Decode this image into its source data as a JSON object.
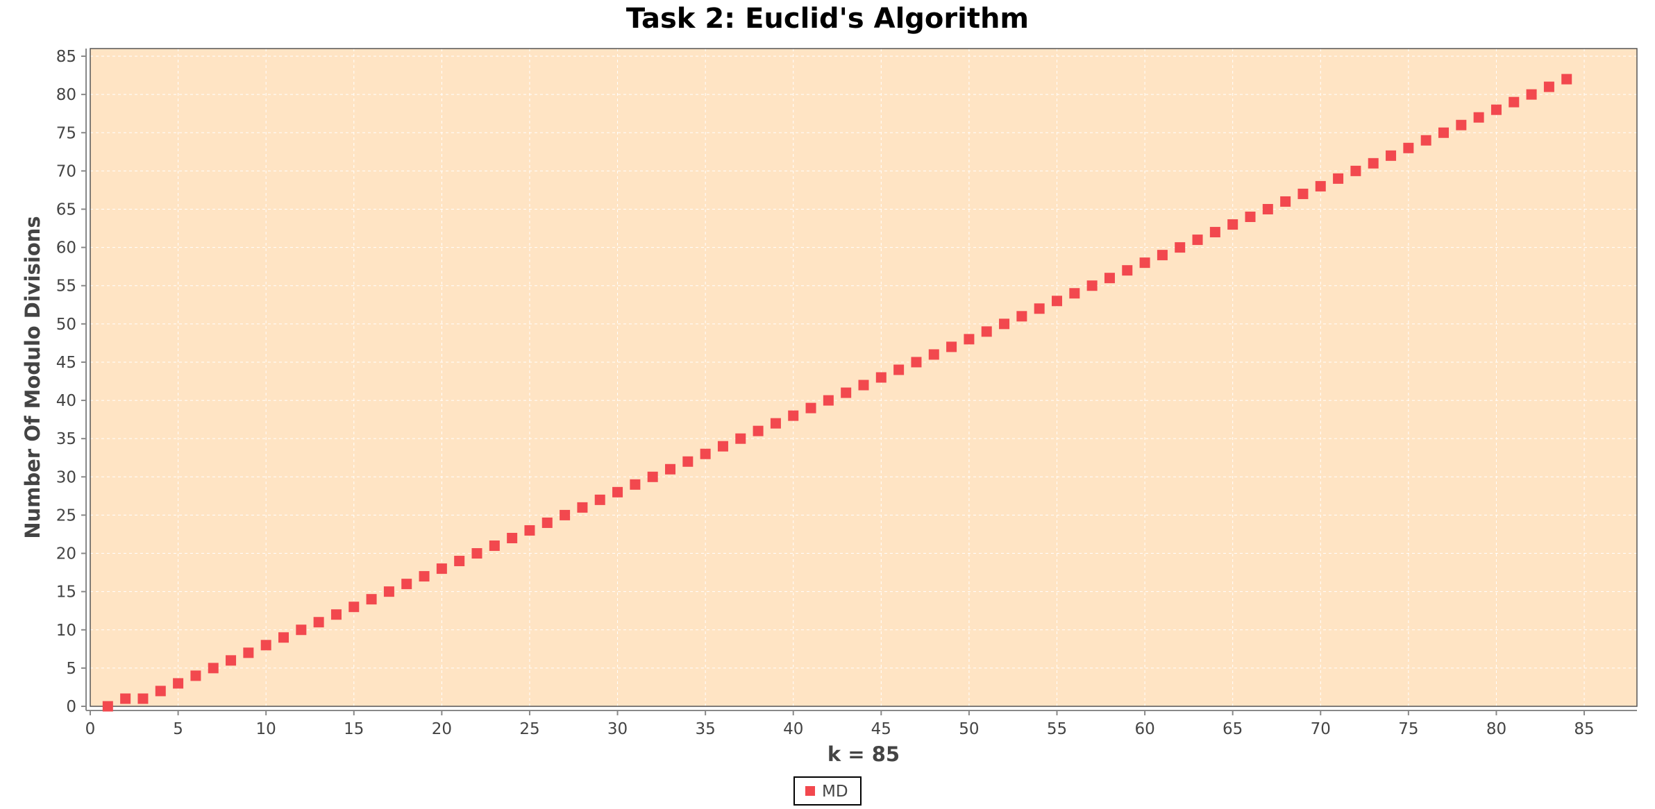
{
  "chart_data": {
    "type": "scatter",
    "title": "Task 2: Euclid's Algorithm",
    "xlabel": "k = 85",
    "ylabel": "Number Of Modulo Divisions",
    "xlim": [
      0,
      88
    ],
    "ylim": [
      0,
      86
    ],
    "xticks": [
      0,
      5,
      10,
      15,
      20,
      25,
      30,
      35,
      40,
      45,
      50,
      55,
      60,
      65,
      70,
      75,
      80,
      85
    ],
    "yticks": [
      0,
      5,
      10,
      15,
      20,
      25,
      30,
      35,
      40,
      45,
      50,
      55,
      60,
      65,
      70,
      75,
      80,
      85
    ],
    "grid": true,
    "legend_position": "bottom-center",
    "colors": {
      "plot_background": "#FFE4C4",
      "marker": "#F2484E",
      "grid": "#ffffff",
      "axis": "#888888"
    },
    "series": [
      {
        "name": "MD",
        "x": [
          1,
          2,
          3,
          4,
          5,
          6,
          7,
          8,
          9,
          10,
          11,
          12,
          13,
          14,
          15,
          16,
          17,
          18,
          19,
          20,
          21,
          22,
          23,
          24,
          25,
          26,
          27,
          28,
          29,
          30,
          31,
          32,
          33,
          34,
          35,
          36,
          37,
          38,
          39,
          40,
          41,
          42,
          43,
          44,
          45,
          46,
          47,
          48,
          49,
          50,
          51,
          52,
          53,
          54,
          55,
          56,
          57,
          58,
          59,
          60,
          61,
          62,
          63,
          64,
          65,
          66,
          67,
          68,
          69,
          70,
          71,
          72,
          73,
          74,
          75,
          76,
          77,
          78,
          79,
          80,
          81,
          82,
          83,
          84
        ],
        "y": [
          0,
          1,
          1,
          2,
          3,
          4,
          5,
          6,
          7,
          8,
          9,
          10,
          11,
          12,
          13,
          14,
          15,
          16,
          17,
          18,
          19,
          20,
          21,
          22,
          23,
          24,
          25,
          26,
          27,
          28,
          29,
          30,
          31,
          32,
          33,
          34,
          35,
          36,
          37,
          38,
          39,
          40,
          41,
          42,
          43,
          44,
          45,
          46,
          47,
          48,
          49,
          50,
          51,
          52,
          53,
          54,
          55,
          56,
          57,
          58,
          59,
          60,
          61,
          62,
          63,
          64,
          65,
          66,
          67,
          68,
          69,
          70,
          71,
          72,
          73,
          74,
          75,
          76,
          77,
          78,
          79,
          80,
          81,
          82
        ]
      }
    ]
  }
}
